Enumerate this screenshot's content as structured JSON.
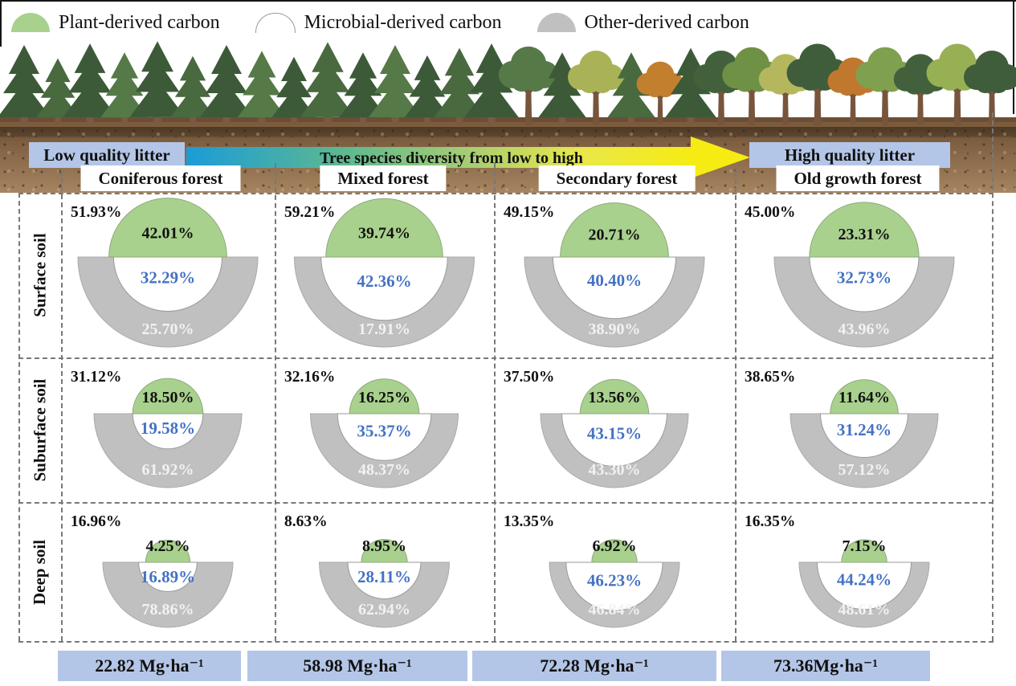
{
  "legend": {
    "items": [
      {
        "label": "Plant-derived carbon",
        "color": "#a9d18e"
      },
      {
        "label": "Microbial-derived carbon",
        "color": "#ffffff"
      },
      {
        "label": "Other-derived carbon",
        "color": "#c0c0c0"
      }
    ]
  },
  "banner": {
    "left_label": "Low quality litter",
    "arrow_label": "Tree species diversity from low to high",
    "right_label": "High quality litter"
  },
  "colors": {
    "plant": "#a9d18e",
    "microbial": "#ffffff",
    "other": "#c0c0c0",
    "microbial_text": "#4472c4",
    "panel": "#b4c6e7",
    "arrow_start": "#1b9cd8",
    "arrow_end": "#f6ec13"
  },
  "chart_data": {
    "type": "nested-semicircle-grid",
    "unit": "%",
    "columns": [
      "Coniferous forest",
      "Mixed forest",
      "Secondary forest",
      "Old growth forest"
    ],
    "rows": [
      "Surface soil",
      "Suburface soil",
      "Deep soil"
    ],
    "series": [
      "Plant-derived carbon",
      "Microbial-derived carbon",
      "Other-derived carbon"
    ],
    "cells": [
      [
        {
          "soc_share": 51.93,
          "plant": 42.01,
          "microbial": 32.29,
          "other": 25.7
        },
        {
          "soc_share": 59.21,
          "plant": 39.74,
          "microbial": 42.36,
          "other": 17.91
        },
        {
          "soc_share": 49.15,
          "plant": 20.71,
          "microbial": 40.4,
          "other": 38.9
        },
        {
          "soc_share": 45.0,
          "plant": 23.31,
          "microbial": 32.73,
          "other": 43.96
        }
      ],
      [
        {
          "soc_share": 31.12,
          "plant": 18.5,
          "microbial": 19.58,
          "other": 61.92
        },
        {
          "soc_share": 32.16,
          "plant": 16.25,
          "microbial": 35.37,
          "other": 48.37
        },
        {
          "soc_share": 37.5,
          "plant": 13.56,
          "microbial": 43.15,
          "other": 43.3
        },
        {
          "soc_share": 38.65,
          "plant": 11.64,
          "microbial": 31.24,
          "other": 57.12
        }
      ],
      [
        {
          "soc_share": 16.96,
          "plant": 4.25,
          "microbial": 16.89,
          "other": 78.86
        },
        {
          "soc_share": 8.63,
          "plant": 8.95,
          "microbial": 28.11,
          "other": 62.94
        },
        {
          "soc_share": 13.35,
          "plant": 6.92,
          "microbial": 46.23,
          "other": 46.84
        },
        {
          "soc_share": 16.35,
          "plant": 7.15,
          "microbial": 44.24,
          "other": 48.61
        }
      ]
    ],
    "column_totals": [
      {
        "value": 22.82,
        "label": "22.82 Mg·ha⁻¹"
      },
      {
        "value": 58.98,
        "label": "58.98 Mg·ha⁻¹"
      },
      {
        "value": 72.28,
        "label": "72.28 Mg·ha⁻¹"
      },
      {
        "value": 73.36,
        "label": "73.36Mg·ha⁻¹"
      }
    ]
  }
}
